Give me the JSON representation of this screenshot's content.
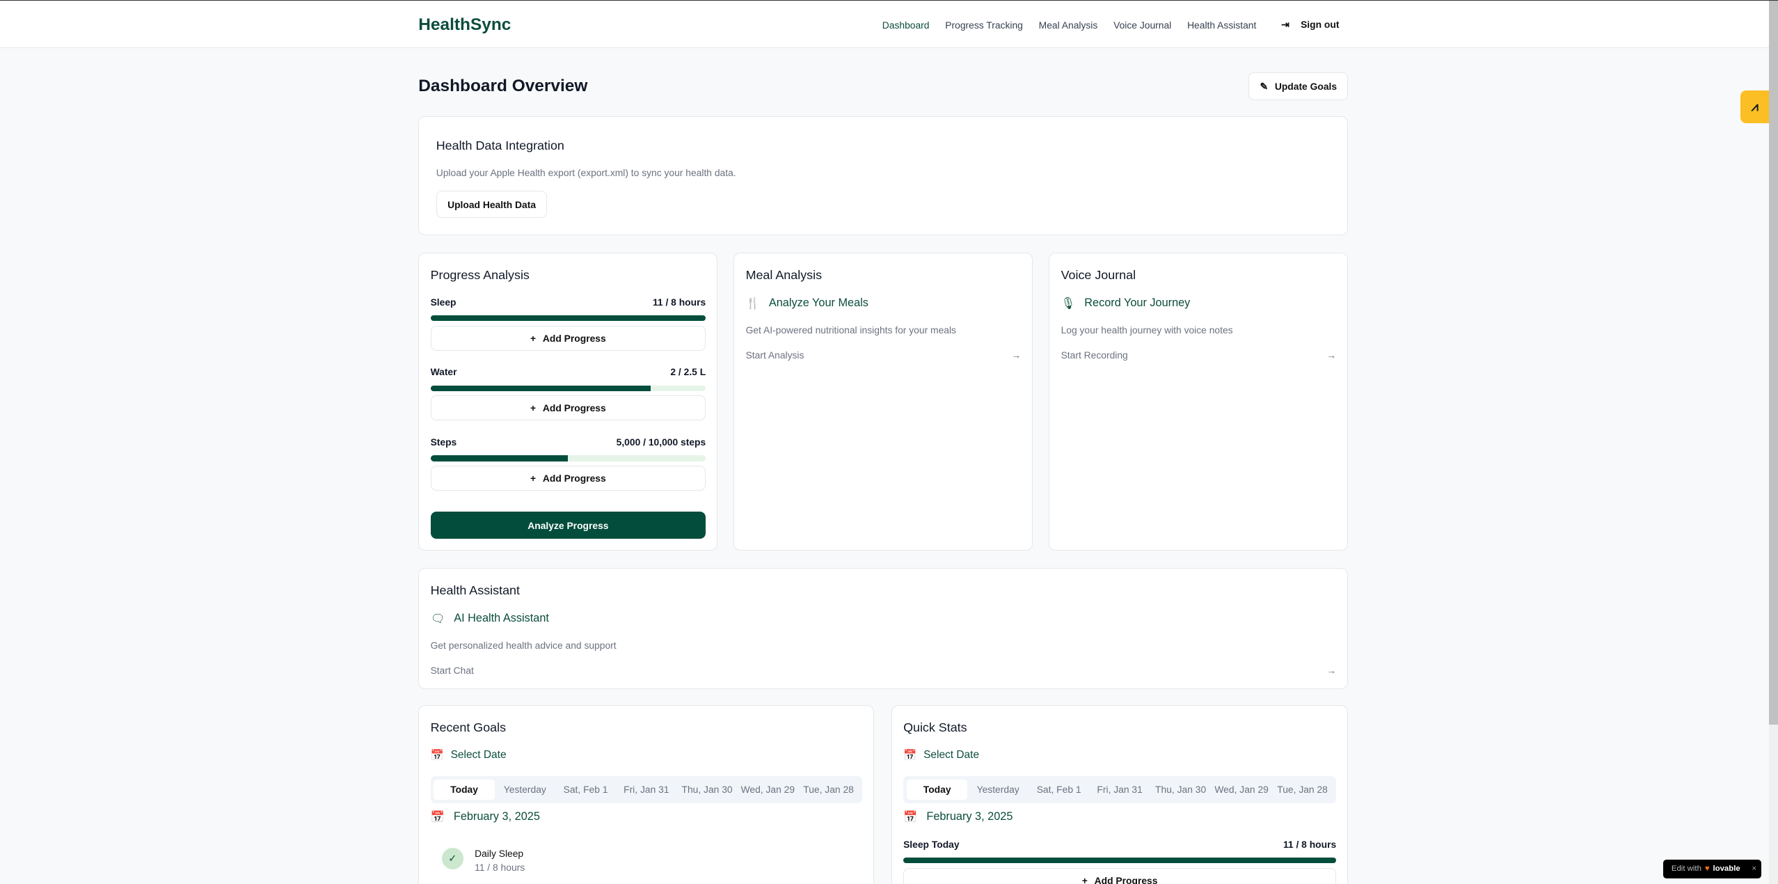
{
  "app": {
    "name": "HealthSync"
  },
  "nav": {
    "items": [
      "Dashboard",
      "Progress Tracking",
      "Meal Analysis",
      "Voice Journal",
      "Health Assistant"
    ],
    "active": "Dashboard",
    "signout": "Sign out"
  },
  "page": {
    "title": "Dashboard Overview",
    "update_goals": "Update Goals"
  },
  "integration": {
    "title": "Health Data Integration",
    "desc": "Upload your Apple Health export (export.xml) to sync your health data.",
    "button": "Upload Health Data"
  },
  "progress": {
    "title": "Progress Analysis",
    "items": [
      {
        "label": "Sleep",
        "value": "11 / 8 hours",
        "percent": 100
      },
      {
        "label": "Water",
        "value": "2 / 2.5 L",
        "percent": 80
      },
      {
        "label": "Steps",
        "value": "5,000 / 10,000 steps",
        "percent": 50
      }
    ],
    "add_label": "Add Progress",
    "analyze": "Analyze Progress"
  },
  "meal": {
    "title": "Meal Analysis",
    "heading": "Analyze Your Meals",
    "desc": "Get AI-powered nutritional insights for your meals",
    "link": "Start Analysis"
  },
  "voice": {
    "title": "Voice Journal",
    "heading": "Record Your Journey",
    "desc": "Log your health journey with voice notes",
    "link": "Start Recording"
  },
  "assistant": {
    "title": "Health Assistant",
    "heading": "AI Health Assistant",
    "desc": "Get personalized health advice and support",
    "link": "Start Chat"
  },
  "dates": [
    "Today",
    "Yesterday",
    "Sat, Feb 1",
    "Fri, Jan 31",
    "Thu, Jan 30",
    "Wed, Jan 29",
    "Tue, Jan 28"
  ],
  "goals": {
    "title": "Recent Goals",
    "select": "Select Date",
    "date": "February 3, 2025",
    "item": {
      "name": "Daily Sleep",
      "value": "11 / 8 hours"
    }
  },
  "stats": {
    "title": "Quick Stats",
    "select": "Select Date",
    "date": "February 3, 2025",
    "label": "Sleep Today",
    "value": "11 / 8 hours",
    "percent": 100,
    "add_label": "Add Progress"
  },
  "badge": {
    "text": "Edit with",
    "brand": "lovable"
  },
  "colors": {
    "primary": "#034d3c",
    "accent": "#fbbf24"
  }
}
